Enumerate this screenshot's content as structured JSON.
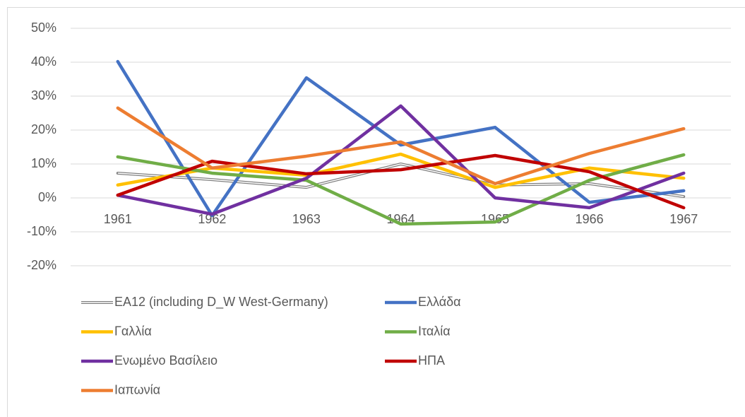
{
  "chart_data": {
    "type": "line",
    "categories": [
      "1961",
      "1962",
      "1963",
      "1964",
      "1965",
      "1966",
      "1967"
    ],
    "series": [
      {
        "name": "EA12 (including D_W West-Germany)",
        "color": "#808080",
        "values": [
          7.3,
          5.4,
          3.1,
          10,
          3.8,
          4.2,
          0.4
        ]
      },
      {
        "name": "Ελλάδα",
        "color": "#4472c4",
        "values": [
          40.2,
          -5.2,
          35.4,
          15.6,
          20.8,
          -1.3,
          2.1
        ]
      },
      {
        "name": "Γαλλία",
        "color": "#ffc000",
        "values": [
          3.8,
          8.8,
          6.7,
          12.9,
          3.1,
          8.8,
          5.8
        ]
      },
      {
        "name": "Ιταλία",
        "color": "#70ad47",
        "values": [
          12.1,
          7.3,
          5.2,
          -7.7,
          -7.1,
          5.2,
          12.7
        ]
      },
      {
        "name": "Ενωμένο Βασίλειο",
        "color": "#7030a0",
        "values": [
          0.8,
          -4.8,
          5.8,
          27.1,
          0,
          -2.9,
          7.3
        ]
      },
      {
        "name": "ΗΠΑ",
        "color": "#c00000",
        "values": [
          0.8,
          10.8,
          7.1,
          8.3,
          12.5,
          7.7,
          -2.9
        ]
      },
      {
        "name": "Ιαπωνία",
        "color": "#ed7d31",
        "values": [
          26.5,
          8.8,
          12.3,
          16.5,
          4.2,
          13.1,
          20.4
        ]
      }
    ],
    "ylim": [
      -20,
      50
    ],
    "yticks": [
      {
        "value": -20,
        "label": "-20%"
      },
      {
        "value": -10,
        "label": "-10%"
      },
      {
        "value": 0,
        "label": "0%"
      },
      {
        "value": 10,
        "label": "10%"
      },
      {
        "value": 20,
        "label": "20%"
      },
      {
        "value": 30,
        "label": "30%"
      },
      {
        "value": 40,
        "label": "40%"
      },
      {
        "value": 50,
        "label": "50%"
      }
    ],
    "grid": true,
    "legend": "bottom"
  }
}
